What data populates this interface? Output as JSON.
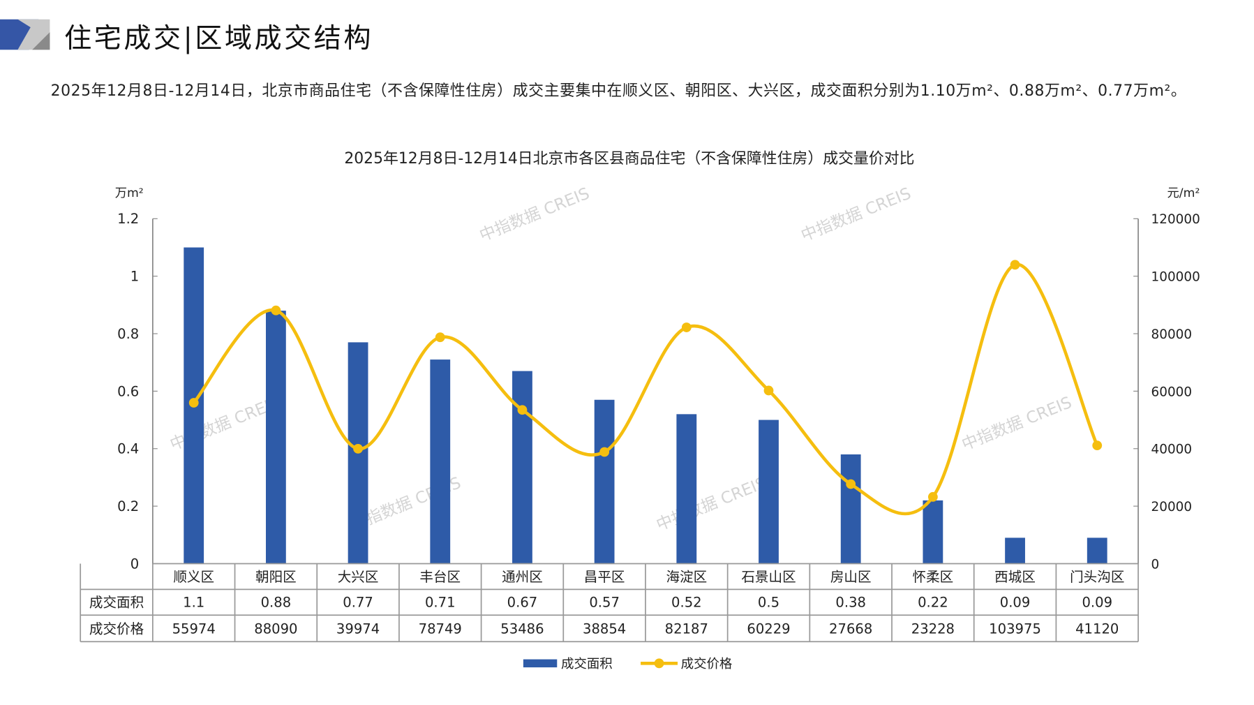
{
  "header": {
    "title": "住宅成交|区域成交结构"
  },
  "summary": "2025年12月8日-12月14日，北京市商品住宅（不含保障性住房）成交主要集中在顺义区、朝阳区、大兴区，成交面积分别为1.10万m²、0.88万m²、0.77万m²。",
  "watermark": "中指数据 CREIS",
  "colors": {
    "bar": "#2E5BA8",
    "line": "#F5BE0F",
    "axis": "#888888",
    "grid": "#999999"
  },
  "chart_data": {
    "type": "bar+line",
    "title": "2025年12月8日-12月14日北京市各区县商品住宅（不含保障性住房）成交量价对比",
    "ylabel": "万m²",
    "y2label": "元/m²",
    "ylim": [
      0,
      1.2
    ],
    "y2lim": [
      0,
      120000
    ],
    "yticks": [
      "0",
      "0.2",
      "0.4",
      "0.6",
      "0.8",
      "1",
      "1.2"
    ],
    "y2ticks": [
      "0",
      "20000",
      "40000",
      "60000",
      "80000",
      "100000",
      "120000"
    ],
    "categories": [
      "顺义区",
      "朝阳区",
      "大兴区",
      "丰台区",
      "通州区",
      "昌平区",
      "海淀区",
      "石景山区",
      "房山区",
      "怀柔区",
      "西城区",
      "门头沟区"
    ],
    "series": [
      {
        "name": "成交面积",
        "type": "bar",
        "axis": "left",
        "values": [
          1.1,
          0.88,
          0.77,
          0.71,
          0.67,
          0.57,
          0.52,
          0.5,
          0.38,
          0.22,
          0.09,
          0.09
        ],
        "labels": [
          "1.1",
          "0.88",
          "0.77",
          "0.71",
          "0.67",
          "0.57",
          "0.52",
          "0.5",
          "0.38",
          "0.22",
          "0.09",
          "0.09"
        ]
      },
      {
        "name": "成交价格",
        "type": "line",
        "axis": "right",
        "values": [
          55974,
          88090,
          39974,
          78749,
          53486,
          38854,
          82187,
          60229,
          27668,
          23228,
          103975,
          41120
        ]
      }
    ],
    "legend": "bottom",
    "grid": false,
    "data_table": true
  }
}
